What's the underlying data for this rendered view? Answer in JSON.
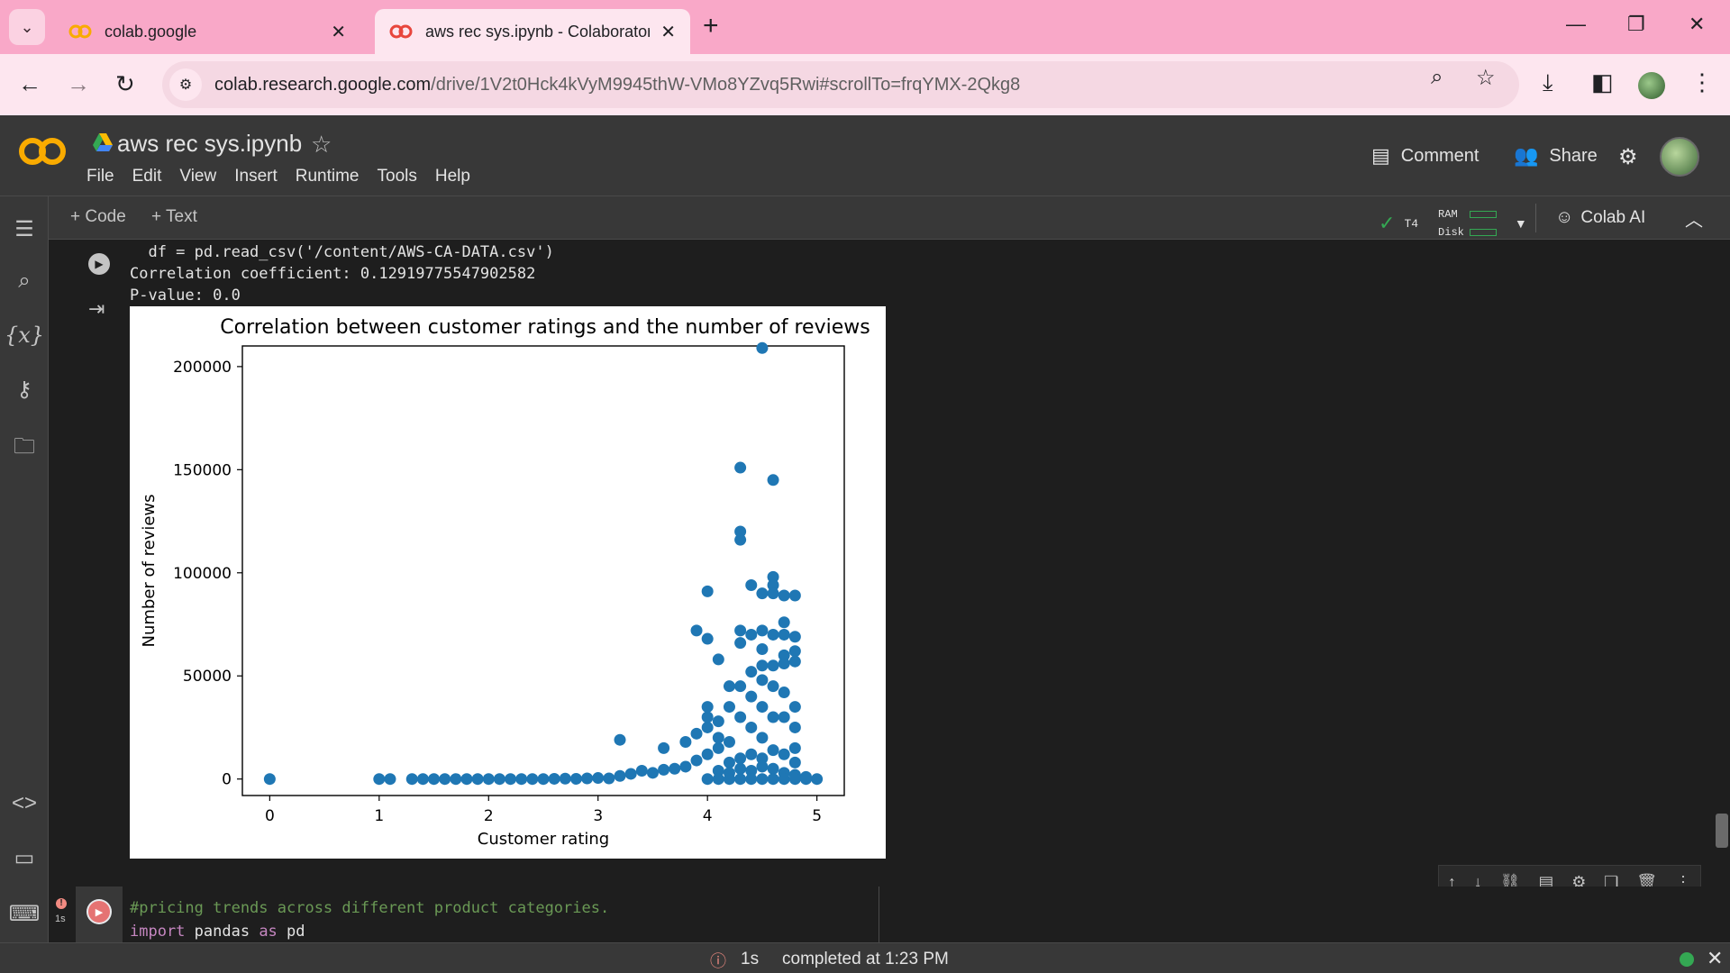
{
  "browser": {
    "tabs": [
      {
        "title": "colab.google",
        "active": false
      },
      {
        "title": "aws rec sys.ipynb - Colaboratory",
        "active": true
      }
    ],
    "url_host": "colab.research.google.com",
    "url_path": "/drive/1V2t0Hck4kVyM9945thW-VMo8YZvq5Rwi#scrollTo=frqYMX-2Qkg8"
  },
  "notebook": {
    "title": "aws rec sys.ipynb",
    "menu": [
      "File",
      "Edit",
      "View",
      "Insert",
      "Runtime",
      "Tools",
      "Help"
    ],
    "comment_label": "Comment",
    "share_label": "Share"
  },
  "toolbar": {
    "add_code": "+ Code",
    "add_text": "+ Text",
    "gpu": "T4",
    "ram_label": "RAM",
    "disk_label": "Disk",
    "colab_ai": "Colab AI"
  },
  "cell1": {
    "code_line": "  df = pd.read_csv('/content/AWS-CA-DATA.csv')",
    "output_corr": "Correlation coefficient: 0.12919775547902582",
    "output_p": "P-value: 0.0"
  },
  "cell2": {
    "comment": "#pricing trends across different product categories.",
    "import_kw": "import",
    "import_rest": " pandas ",
    "as_kw": "as",
    "alias": " pd",
    "exec_time": "1s"
  },
  "status": {
    "time": "1s",
    "message": "completed at 1:23 PM"
  },
  "colors": {
    "point": "#1f77b4",
    "tabbar": "#f9a8c8",
    "ok": "#34a853"
  },
  "chart_data": {
    "type": "scatter",
    "title": "Correlation between customer ratings and the number of reviews",
    "xlabel": "Customer rating",
    "ylabel": "Number of reviews",
    "xlim": [
      -0.25,
      5.25
    ],
    "ylim": [
      -8000,
      210000
    ],
    "xticks": [
      0,
      1,
      2,
      3,
      4,
      5
    ],
    "yticks": [
      0,
      50000,
      100000,
      150000,
      200000
    ],
    "grid": false,
    "series": [
      {
        "points": [
          [
            0,
            0
          ],
          [
            1.0,
            0
          ],
          [
            1.1,
            0
          ],
          [
            1.3,
            0
          ],
          [
            1.4,
            0
          ],
          [
            1.5,
            0
          ],
          [
            1.6,
            0
          ],
          [
            1.7,
            0
          ],
          [
            1.8,
            0
          ],
          [
            1.9,
            0
          ],
          [
            2.0,
            0
          ],
          [
            2.1,
            0
          ],
          [
            2.2,
            0
          ],
          [
            2.3,
            0
          ],
          [
            2.4,
            0
          ],
          [
            2.5,
            0
          ],
          [
            2.6,
            100
          ],
          [
            2.7,
            200
          ],
          [
            2.8,
            100
          ],
          [
            2.9,
            300
          ],
          [
            3.0,
            500
          ],
          [
            3.1,
            300
          ],
          [
            3.2,
            1500
          ],
          [
            3.3,
            2500
          ],
          [
            3.4,
            4000
          ],
          [
            3.5,
            3000
          ],
          [
            3.6,
            4500
          ],
          [
            3.7,
            5000
          ],
          [
            3.8,
            6000
          ],
          [
            3.9,
            9000
          ],
          [
            3.2,
            19000
          ],
          [
            3.6,
            15000
          ],
          [
            3.8,
            18000
          ],
          [
            3.9,
            22000
          ],
          [
            3.9,
            72000
          ],
          [
            4.0,
            68000
          ],
          [
            4.0,
            91000
          ],
          [
            4.1,
            58000
          ],
          [
            4.0,
            25000
          ],
          [
            4.0,
            30000
          ],
          [
            4.0,
            35000
          ],
          [
            4.0,
            12000
          ],
          [
            4.1,
            15000
          ],
          [
            4.1,
            20000
          ],
          [
            4.1,
            28000
          ],
          [
            4.2,
            18000
          ],
          [
            4.2,
            35000
          ],
          [
            4.2,
            45000
          ],
          [
            4.3,
            151000
          ],
          [
            4.3,
            120000
          ],
          [
            4.3,
            116000
          ],
          [
            4.3,
            72000
          ],
          [
            4.3,
            66000
          ],
          [
            4.3,
            45000
          ],
          [
            4.3,
            30000
          ],
          [
            4.4,
            94000
          ],
          [
            4.4,
            70000
          ],
          [
            4.4,
            52000
          ],
          [
            4.4,
            40000
          ],
          [
            4.4,
            25000
          ],
          [
            4.5,
            209000
          ],
          [
            4.5,
            90000
          ],
          [
            4.5,
            72000
          ],
          [
            4.5,
            63000
          ],
          [
            4.5,
            55000
          ],
          [
            4.5,
            48000
          ],
          [
            4.5,
            35000
          ],
          [
            4.5,
            20000
          ],
          [
            4.6,
            145000
          ],
          [
            4.6,
            98000
          ],
          [
            4.6,
            94000
          ],
          [
            4.6,
            90000
          ],
          [
            4.6,
            70000
          ],
          [
            4.6,
            55000
          ],
          [
            4.6,
            45000
          ],
          [
            4.6,
            30000
          ],
          [
            4.7,
            89000
          ],
          [
            4.7,
            76000
          ],
          [
            4.7,
            70000
          ],
          [
            4.7,
            60000
          ],
          [
            4.7,
            56000
          ],
          [
            4.7,
            42000
          ],
          [
            4.7,
            30000
          ],
          [
            4.8,
            89000
          ],
          [
            4.8,
            69000
          ],
          [
            4.8,
            62000
          ],
          [
            4.8,
            57000
          ],
          [
            4.8,
            35000
          ],
          [
            4.8,
            25000
          ],
          [
            4.8,
            15000
          ],
          [
            4.2,
            8000
          ],
          [
            4.3,
            10000
          ],
          [
            4.4,
            12000
          ],
          [
            4.5,
            10000
          ],
          [
            4.6,
            14000
          ],
          [
            4.7,
            12000
          ],
          [
            4.8,
            8000
          ],
          [
            4.1,
            4000
          ],
          [
            4.2,
            3000
          ],
          [
            4.3,
            5000
          ],
          [
            4.4,
            4000
          ],
          [
            4.5,
            6000
          ],
          [
            4.6,
            5000
          ],
          [
            4.7,
            3000
          ],
          [
            4.8,
            2000
          ],
          [
            4.0,
            0
          ],
          [
            4.1,
            0
          ],
          [
            4.2,
            0
          ],
          [
            4.3,
            0
          ],
          [
            4.4,
            0
          ],
          [
            4.5,
            0
          ],
          [
            4.6,
            0
          ],
          [
            4.7,
            0
          ],
          [
            4.8,
            0
          ],
          [
            4.9,
            1000
          ],
          [
            4.9,
            0
          ],
          [
            5.0,
            0
          ]
        ]
      }
    ]
  }
}
